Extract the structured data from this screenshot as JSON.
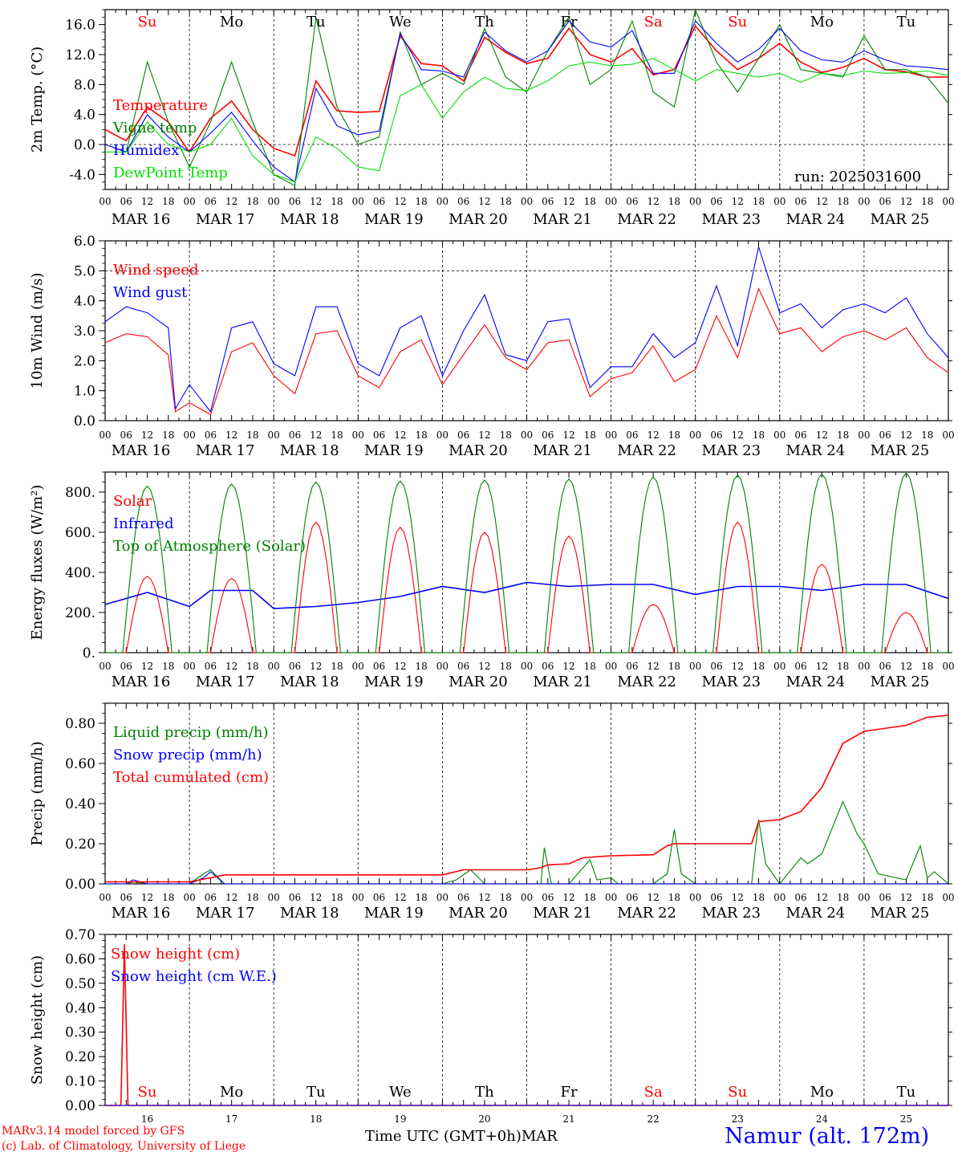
{
  "run_label": "run: 2025031600",
  "station_label": "Namur (alt. 172m)",
  "credit_line1": "MARv3.14 model forced by GFS",
  "credit_line2": "(c) Lab. of Climatology, University of Liege",
  "xaxis_title": "Time UTC (GMT+0h)",
  "month_label": "MAR",
  "hour_ticks": [
    "00",
    "06",
    "12",
    "18"
  ],
  "last_hour_tick": "00",
  "day_dates": [
    "MAR 16",
    "MAR 17",
    "MAR 18",
    "MAR 19",
    "MAR 20",
    "MAR 21",
    "MAR 22",
    "MAR 23",
    "MAR 24",
    "MAR 25"
  ],
  "day_numbers": [
    "16",
    "17",
    "18",
    "19",
    "20",
    "21",
    "22",
    "23",
    "24",
    "25"
  ],
  "weekdays": [
    {
      "label": "Su",
      "weekend": true
    },
    {
      "label": "Mo",
      "weekend": false
    },
    {
      "label": "Tu",
      "weekend": false
    },
    {
      "label": "We",
      "weekend": false
    },
    {
      "label": "Th",
      "weekend": false
    },
    {
      "label": "Fr",
      "weekend": false
    },
    {
      "label": "Sa",
      "weekend": true
    },
    {
      "label": "Su",
      "weekend": true
    },
    {
      "label": "Mo",
      "weekend": false
    },
    {
      "label": "Tu",
      "weekend": false
    }
  ],
  "colors": {
    "red": "#ff0000",
    "green": "#008000",
    "blue": "#0000ff",
    "lightgreen": "#00e000",
    "weekend": "#ff0000"
  },
  "chart_data": [
    {
      "type": "line",
      "ylabel": "2m Temp. (°C)",
      "ylim": [
        -6,
        18
      ],
      "yticks": [
        -4,
        0,
        4,
        8,
        12,
        16
      ],
      "ytick_labels": [
        "-4.0",
        "0.0",
        "4.0",
        "8.0",
        "12.0",
        "16.0"
      ],
      "x_unit": "hours since MAR 16 00 UTC",
      "xlim": [
        0,
        240
      ],
      "series": [
        {
          "name": "Temperature",
          "color": "#ff0000",
          "x": [
            0,
            6,
            12,
            18,
            24,
            30,
            36,
            42,
            48,
            54,
            60,
            66,
            72,
            78,
            84,
            90,
            96,
            102,
            108,
            114,
            120,
            126,
            132,
            138,
            144,
            150,
            156,
            162,
            168,
            174,
            180,
            186,
            192,
            198,
            204,
            210,
            216,
            222,
            228,
            234,
            240
          ],
          "y": [
            2,
            0.5,
            5,
            3,
            -1,
            3.5,
            5.8,
            2,
            -0.5,
            -1.5,
            8.5,
            4.5,
            4.3,
            4.4,
            14.5,
            10.8,
            10.5,
            8.5,
            14.3,
            12.3,
            10.8,
            11.5,
            15.5,
            12,
            11,
            12.8,
            9.3,
            10,
            15.8,
            12.5,
            10,
            11.5,
            13.5,
            11,
            9.6,
            10.3,
            11.5,
            10,
            9.7,
            9,
            9
          ]
        },
        {
          "name": "Vigne temp",
          "color": "#008000",
          "x": [
            0,
            6,
            12,
            18,
            24,
            30,
            36,
            42,
            48,
            54,
            60,
            66,
            72,
            78,
            84,
            90,
            96,
            102,
            108,
            114,
            120,
            126,
            132,
            138,
            144,
            150,
            156,
            162,
            168,
            174,
            180,
            186,
            192,
            198,
            204,
            210,
            216,
            222,
            228,
            234,
            240
          ],
          "y": [
            0,
            -1,
            11,
            3,
            -3,
            3,
            11,
            3,
            -4,
            -5.5,
            17,
            5,
            0,
            1,
            15,
            8,
            9.5,
            8,
            15.5,
            9,
            7,
            12.5,
            17,
            8,
            10,
            16.5,
            7,
            5,
            18,
            11,
            7,
            11.5,
            16,
            10,
            9.5,
            9,
            14.5,
            10,
            10,
            9,
            5.5
          ]
        },
        {
          "name": "Humidex",
          "color": "#0000ff",
          "x": [
            0,
            6,
            12,
            18,
            24,
            30,
            36,
            42,
            48,
            54,
            60,
            66,
            72,
            78,
            84,
            90,
            96,
            102,
            108,
            114,
            120,
            126,
            132,
            138,
            144,
            150,
            156,
            162,
            168,
            174,
            180,
            186,
            192,
            198,
            204,
            210,
            216,
            222,
            228,
            234,
            240
          ],
          "y": [
            0,
            -1,
            4,
            1,
            -1,
            1.5,
            4.3,
            0.5,
            -3,
            -5,
            7.5,
            2.5,
            1.3,
            1.8,
            14.8,
            10,
            9.8,
            9,
            15,
            12.5,
            11,
            12.5,
            16.5,
            13.7,
            13,
            15.2,
            9.5,
            9.5,
            16.5,
            13.5,
            11,
            12.7,
            15.5,
            12.5,
            11.3,
            11,
            12.5,
            11.3,
            10.5,
            10.3,
            10
          ]
        },
        {
          "name": "DewPoint Temp",
          "color": "#00e000",
          "x": [
            0,
            6,
            12,
            18,
            24,
            30,
            36,
            42,
            48,
            54,
            60,
            66,
            72,
            78,
            84,
            90,
            96,
            102,
            108,
            114,
            120,
            126,
            132,
            138,
            144,
            150,
            156,
            162,
            168,
            174,
            180,
            186,
            192,
            198,
            204,
            210,
            216,
            222,
            228,
            234,
            240
          ],
          "y": [
            -1,
            -1,
            3,
            0,
            -1,
            0,
            3.5,
            -1.5,
            -4,
            -5,
            1,
            -0.5,
            -3,
            -3.5,
            6.5,
            8,
            3.5,
            7,
            9,
            7.5,
            7.2,
            8.5,
            10.5,
            11,
            10.5,
            10.7,
            11.5,
            10,
            8.5,
            10,
            9.5,
            9,
            9.5,
            8.3,
            9.5,
            9.2,
            9.8,
            9.5,
            9.6,
            9.8,
            9.2
          ]
        }
      ],
      "legend": [
        "Temperature",
        "Vigne temp",
        "Humidex",
        "DewPoint Temp"
      ]
    },
    {
      "type": "line",
      "ylabel": "10m Wind (m/s)",
      "ylim": [
        0,
        6
      ],
      "yticks": [
        0,
        1,
        2,
        3,
        4,
        5,
        6
      ],
      "ytick_labels": [
        "0.0",
        "1.0",
        "2.0",
        "3.0",
        "4.0",
        "5.0",
        "6.0"
      ],
      "xlim": [
        0,
        240
      ],
      "series": [
        {
          "name": "Wind speed",
          "color": "#ff0000",
          "x": [
            0,
            6,
            12,
            18,
            20,
            24,
            30,
            36,
            42,
            48,
            54,
            60,
            66,
            72,
            78,
            84,
            90,
            96,
            102,
            108,
            114,
            120,
            126,
            132,
            138,
            144,
            150,
            156,
            162,
            168,
            174,
            180,
            186,
            192,
            198,
            204,
            210,
            216,
            222,
            228,
            234,
            240
          ],
          "y": [
            2.6,
            2.9,
            2.8,
            2.2,
            0.3,
            0.6,
            0.2,
            2.3,
            2.6,
            1.5,
            0.9,
            2.9,
            3,
            1.5,
            1.1,
            2.3,
            2.7,
            1.2,
            2.2,
            3.2,
            2.1,
            1.7,
            2.6,
            2.7,
            0.8,
            1.4,
            1.6,
            2.5,
            1.3,
            1.7,
            3.5,
            2.1,
            4.4,
            2.9,
            3.1,
            2.3,
            2.8,
            3,
            2.7,
            3.1,
            2.1,
            1.6
          ]
        },
        {
          "name": "Wind gust",
          "color": "#0000ff",
          "x": [
            0,
            6,
            12,
            18,
            20,
            24,
            30,
            36,
            42,
            48,
            54,
            60,
            66,
            72,
            78,
            84,
            90,
            96,
            102,
            108,
            114,
            120,
            126,
            132,
            138,
            144,
            150,
            156,
            162,
            168,
            174,
            180,
            186,
            192,
            198,
            204,
            210,
            216,
            222,
            228,
            234,
            240
          ],
          "y": [
            3.3,
            3.8,
            3.6,
            3.1,
            0.4,
            1.2,
            0.3,
            3.1,
            3.3,
            1.9,
            1.5,
            3.8,
            3.8,
            1.9,
            1.5,
            3.1,
            3.5,
            1.5,
            3,
            4.2,
            2.2,
            2,
            3.3,
            3.4,
            1.1,
            1.8,
            1.8,
            2.9,
            2.1,
            2.6,
            4.5,
            2.5,
            5.8,
            3.6,
            3.9,
            3.1,
            3.7,
            3.9,
            3.6,
            4.1,
            2.9,
            2.1
          ]
        }
      ],
      "legend": [
        "Wind speed",
        "Wind gust"
      ]
    },
    {
      "type": "line",
      "ylabel": "Energy fluxes (W/m²)",
      "ylim": [
        0,
        900
      ],
      "yticks": [
        0,
        200,
        400,
        600,
        800
      ],
      "ytick_labels": [
        "0.",
        "200.",
        "400.",
        "600.",
        "800."
      ],
      "xlim": [
        0,
        240
      ],
      "series": [
        {
          "name": "Solar",
          "color": "#ff0000",
          "peaks": [
            380,
            370,
            650,
            625,
            600,
            580,
            240,
            650,
            440,
            200
          ],
          "peak_hour": 12
        },
        {
          "name": "Infrared",
          "color": "#0000ff",
          "x": [
            0,
            12,
            24,
            30,
            42,
            48,
            60,
            72,
            84,
            96,
            108,
            120,
            132,
            144,
            156,
            168,
            180,
            192,
            204,
            216,
            228,
            240
          ],
          "y": [
            240,
            300,
            230,
            310,
            310,
            220,
            230,
            250,
            280,
            330,
            300,
            350,
            330,
            340,
            340,
            290,
            330,
            330,
            310,
            340,
            340,
            270
          ]
        },
        {
          "name": "Top of Atmosphere (Solar)",
          "color": "#008000",
          "peaks": [
            830,
            840,
            850,
            855,
            860,
            865,
            875,
            885,
            890,
            895
          ],
          "peak_hour": 12
        }
      ],
      "legend": [
        "Solar",
        "Infrared",
        "Top of Atmosphere (Solar)"
      ]
    },
    {
      "type": "line",
      "ylabel": "Precip (mm/h)",
      "ylim": [
        0,
        0.9
      ],
      "yticks": [
        0,
        0.2,
        0.4,
        0.6,
        0.8
      ],
      "ytick_labels": [
        "0.00",
        "0.20",
        "0.40",
        "0.60",
        "0.80"
      ],
      "xlim": [
        0,
        240
      ],
      "series": [
        {
          "name": "Liquid precip (mm/h)",
          "color": "#008000",
          "x": [
            0,
            6,
            8,
            12,
            24,
            28,
            30,
            34,
            96,
            100,
            104,
            108,
            120,
            124,
            125,
            127,
            132,
            138,
            140,
            144,
            146,
            156,
            160,
            162,
            164,
            168,
            184,
            186,
            188,
            192,
            198,
            200,
            204,
            210,
            214,
            216,
            220,
            228,
            232,
            234,
            236,
            240
          ],
          "y": [
            0,
            0,
            0.01,
            0,
            0,
            0.05,
            0.07,
            0,
            0,
            0.02,
            0.07,
            0,
            0,
            0,
            0.18,
            0,
            0,
            0.12,
            0.02,
            0.03,
            0,
            0,
            0.05,
            0.27,
            0.05,
            0,
            0,
            0.32,
            0.1,
            0,
            0.13,
            0.1,
            0.15,
            0.41,
            0.25,
            0.2,
            0.05,
            0.02,
            0.19,
            0.03,
            0.06,
            0
          ]
        },
        {
          "name": "Snow precip (mm/h)",
          "color": "#0000ff",
          "x": [
            0,
            6,
            8,
            12,
            24,
            28,
            30,
            34,
            240
          ],
          "y": [
            0,
            0,
            0.02,
            0,
            0,
            0.03,
            0.06,
            0,
            0
          ]
        },
        {
          "name": "Total cumulated (cm)",
          "color": "#ff0000",
          "x": [
            0,
            24,
            30,
            34,
            96,
            102,
            120,
            124,
            126,
            132,
            136,
            144,
            156,
            160,
            162,
            184,
            186,
            192,
            198,
            204,
            210,
            216,
            228,
            234,
            240
          ],
          "y": [
            0.01,
            0.01,
            0.03,
            0.045,
            0.045,
            0.07,
            0.07,
            0.08,
            0.095,
            0.1,
            0.13,
            0.14,
            0.145,
            0.19,
            0.2,
            0.2,
            0.31,
            0.32,
            0.36,
            0.48,
            0.7,
            0.76,
            0.79,
            0.83,
            0.84
          ]
        }
      ],
      "legend": [
        "Liquid precip (mm/h)",
        "Snow precip (mm/h)",
        "Total cumulated (cm)"
      ]
    },
    {
      "type": "line",
      "ylabel": "Snow height (cm)",
      "ylim": [
        0,
        0.7
      ],
      "yticks": [
        0,
        0.1,
        0.2,
        0.3,
        0.4,
        0.5,
        0.6,
        0.7
      ],
      "ytick_labels": [
        "0.00",
        "0.10",
        "0.20",
        "0.30",
        "0.40",
        "0.50",
        "0.60",
        "0.70"
      ],
      "xlim": [
        0,
        240
      ],
      "series": [
        {
          "name": "Snow height (cm)",
          "color": "#ff0000",
          "x": [
            0,
            4.5,
            5.5,
            6.5,
            240
          ],
          "y": [
            0,
            0,
            0.66,
            0,
            0
          ]
        },
        {
          "name": "Snow height (cm W.E.)",
          "color": "#0000ff",
          "x": [
            0,
            240
          ],
          "y": [
            0,
            0
          ]
        }
      ],
      "legend": [
        "Snow height (cm)",
        "Snow height (cm W.E.)"
      ]
    }
  ]
}
